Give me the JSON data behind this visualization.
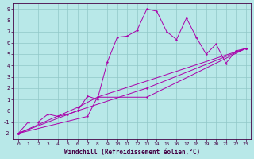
{
  "xlabel": "Windchill (Refroidissement éolien,°C)",
  "background_color": "#b8e8e8",
  "grid_color": "#90c8c8",
  "line_color": "#aa00aa",
  "xlim": [
    -0.5,
    23.5
  ],
  "ylim": [
    -2.5,
    9.5
  ],
  "xticks": [
    0,
    1,
    2,
    3,
    4,
    5,
    6,
    7,
    8,
    9,
    10,
    11,
    12,
    13,
    14,
    15,
    16,
    17,
    18,
    19,
    20,
    21,
    22,
    23
  ],
  "yticks": [
    -2,
    -1,
    0,
    1,
    2,
    3,
    4,
    5,
    6,
    7,
    8,
    9
  ],
  "main_x": [
    0,
    1,
    2,
    3,
    4,
    5,
    6,
    7,
    8,
    9,
    10,
    11,
    12,
    13,
    14,
    15,
    16,
    17,
    18,
    19,
    20,
    21,
    22,
    23
  ],
  "main_y": [
    -2,
    -1,
    -1,
    -0.3,
    -0.5,
    -0.3,
    0,
    1.3,
    1.0,
    4.3,
    6.5,
    6.6,
    7.1,
    9.0,
    8.8,
    7.0,
    6.3,
    8.2,
    6.5,
    5.0,
    5.9,
    4.2,
    5.3,
    5.5
  ],
  "line1_x": [
    0,
    6,
    13,
    23
  ],
  "line1_y": [
    -2,
    0,
    2.0,
    5.5
  ],
  "line2_x": [
    0,
    7,
    8,
    13,
    23
  ],
  "line2_y": [
    -2,
    -0.5,
    1.2,
    1.2,
    5.5
  ],
  "line3_x": [
    0,
    6,
    8,
    23
  ],
  "line3_y": [
    -2,
    0.3,
    1.2,
    5.5
  ]
}
